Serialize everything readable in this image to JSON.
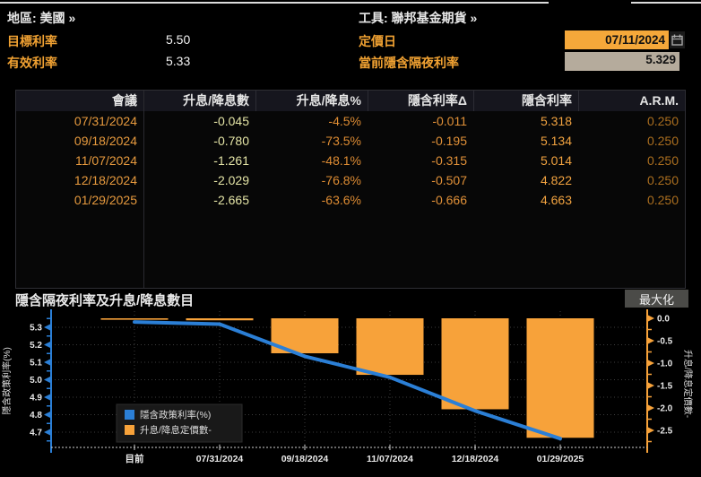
{
  "colors": {
    "amber_label": "#f0a132",
    "date_text": "#e79a3e",
    "count_text": "#e4e4a6",
    "pct_text": "#de8c33",
    "delta_text": "#e09038",
    "implied_text": "#f2a340",
    "arm_text": "#aa6e1f",
    "line_blue": "#2b7fd6",
    "bar_orange": "#f7a23a",
    "date_field_bg": "#f5a83a",
    "readonly_field_bg": "#b5ab9c"
  },
  "header": {
    "region_label": "地區: 美國 »",
    "tool_label": "工具: 聯邦基金期貨 »",
    "target_rate_label": "目標利率",
    "target_rate_value": "5.50",
    "effective_rate_label": "有效利率",
    "effective_rate_value": "5.33",
    "pricing_date_label": "定價日",
    "pricing_date_value": "07/11/2024",
    "current_implied_label": "當前隱含隔夜利率",
    "current_implied_value": "5.329"
  },
  "table": {
    "columns": [
      "會議",
      "升息/降息數",
      "升息/降息%",
      "隱含利率Δ",
      "隱含利率",
      "A.R.M."
    ],
    "rows": [
      [
        "07/31/2024",
        "-0.045",
        "-4.5%",
        "-0.011",
        "5.318",
        "0.250"
      ],
      [
        "09/18/2024",
        "-0.780",
        "-73.5%",
        "-0.195",
        "5.134",
        "0.250"
      ],
      [
        "11/07/2024",
        "-1.261",
        "-48.1%",
        "-0.315",
        "5.014",
        "0.250"
      ],
      [
        "12/18/2024",
        "-2.029",
        "-76.8%",
        "-0.507",
        "4.822",
        "0.250"
      ],
      [
        "01/29/2025",
        "-2.665",
        "-63.6%",
        "-0.666",
        "4.663",
        "0.250"
      ]
    ]
  },
  "chart": {
    "title": "隱含隔夜利率及升息/降息數目",
    "maximize_label": "最大化",
    "legend": [
      {
        "label": "隱含政策利率(%)",
        "color": "#2b7fd6"
      },
      {
        "label": "升息/降息定價數-",
        "color": "#f7a23a"
      }
    ]
  },
  "chart_data": {
    "type": "bar",
    "note": "composite bar+line, dual axis",
    "categories": [
      "目前",
      "07/31/2024",
      "09/18/2024",
      "11/07/2024",
      "12/18/2024",
      "01/29/2025"
    ],
    "series": [
      {
        "name": "隱含政策利率(%)",
        "kind": "line",
        "axis": "left",
        "color": "#2b7fd6",
        "values": [
          5.33,
          5.318,
          5.134,
          5.014,
          4.822,
          4.663
        ]
      },
      {
        "name": "升息/降息定價數-",
        "kind": "bar",
        "axis": "right",
        "color": "#f7a23a",
        "values": [
          0.0,
          -0.045,
          -0.78,
          -1.261,
          -2.029,
          -2.665
        ]
      }
    ],
    "left_axis": {
      "label": "隱含政策利率(%)",
      "ticks": [
        5.3,
        5.2,
        5.1,
        5.0,
        4.9,
        4.8,
        4.7
      ],
      "range": [
        4.59,
        5.39
      ]
    },
    "right_axis": {
      "label": "升息/降息定價數-",
      "ticks": [
        0.0,
        -0.5,
        -1.0,
        -1.5,
        -2.0,
        -2.5
      ],
      "range": [
        -2.9,
        0.16
      ]
    },
    "grid": true,
    "legend_position": "bottom-left"
  }
}
